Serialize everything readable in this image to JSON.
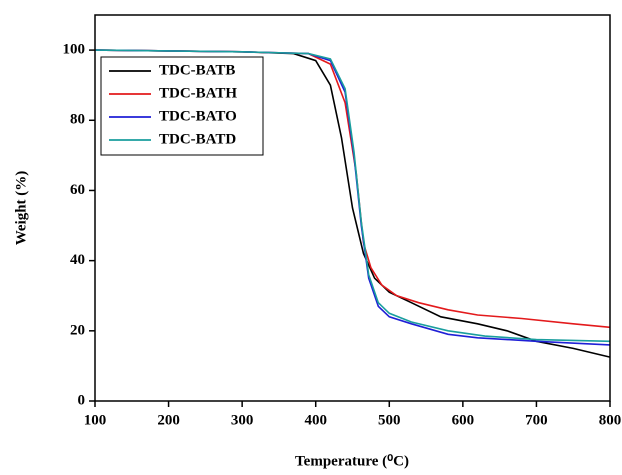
{
  "chart_data": {
    "type": "line",
    "xlabel": "Temperature (⁰C)",
    "ylabel": "Weight (%)",
    "xlim": [
      100,
      800
    ],
    "xticks": [
      100,
      200,
      300,
      400,
      500,
      600,
      700,
      800
    ],
    "ylim": [
      0,
      110
    ],
    "yticks": [
      0,
      20,
      40,
      60,
      80,
      100
    ],
    "legend": "upper left",
    "grid": false,
    "series": [
      {
        "name": "TDC-BATB",
        "color": "#000000",
        "x": [
          100,
          300,
          370,
          400,
          420,
          435,
          450,
          465,
          480,
          500,
          530,
          570,
          620,
          660,
          700,
          750,
          800
        ],
        "values": [
          100,
          99.5,
          99,
          97,
          90,
          75,
          55,
          42,
          35,
          31,
          28,
          24,
          22,
          20,
          17,
          15,
          12.5
        ]
      },
      {
        "name": "TDC-BATH",
        "color": "#e31a1c",
        "x": [
          100,
          300,
          390,
          420,
          440,
          455,
          465,
          475,
          490,
          510,
          540,
          580,
          620,
          680,
          750,
          800
        ],
        "values": [
          100,
          99.5,
          99,
          96,
          85,
          65,
          45,
          38,
          33,
          30,
          28,
          26,
          24.5,
          23.5,
          22,
          21
        ]
      },
      {
        "name": "TDC-BATO",
        "color": "#1f1fd6",
        "x": [
          100,
          300,
          390,
          420,
          440,
          452,
          462,
          472,
          485,
          500,
          530,
          580,
          620,
          700,
          800
        ],
        "values": [
          100,
          99.5,
          99,
          97,
          88,
          70,
          50,
          35,
          27,
          24,
          22,
          19,
          18,
          17,
          16
        ]
      },
      {
        "name": "TDC-BATD",
        "color": "#1a9e9e",
        "x": [
          100,
          300,
          390,
          420,
          440,
          452,
          462,
          472,
          485,
          500,
          530,
          580,
          630,
          700,
          800
        ],
        "values": [
          100,
          99.5,
          99,
          97.5,
          89,
          71,
          51,
          36,
          28,
          25,
          22.5,
          20,
          18.5,
          17.5,
          17
        ]
      }
    ]
  }
}
